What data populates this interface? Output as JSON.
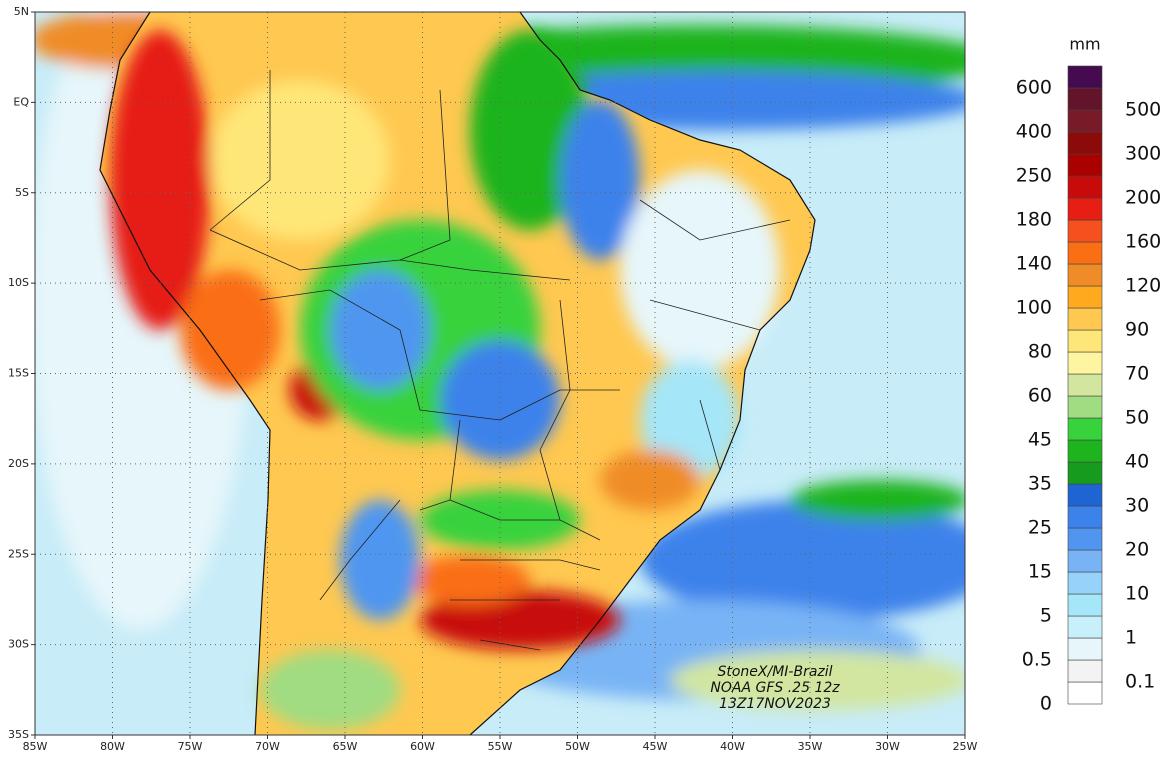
{
  "map": {
    "lon_lim": [
      -85,
      -25
    ],
    "lat_lim": [
      5,
      -35
    ],
    "lon_ticks": [
      {
        "value": -85,
        "label": "85W"
      },
      {
        "value": -80,
        "label": "80W"
      },
      {
        "value": -75,
        "label": "75W"
      },
      {
        "value": -70,
        "label": "70W"
      },
      {
        "value": -65,
        "label": "65W"
      },
      {
        "value": -60,
        "label": "60W"
      },
      {
        "value": -55,
        "label": "55W"
      },
      {
        "value": -50,
        "label": "50W"
      },
      {
        "value": -45,
        "label": "45W"
      },
      {
        "value": -40,
        "label": "40W"
      },
      {
        "value": -35,
        "label": "35W"
      },
      {
        "value": -30,
        "label": "30W"
      },
      {
        "value": -25,
        "label": "25W"
      }
    ],
    "lat_ticks": [
      {
        "value": 5,
        "label": "5N"
      },
      {
        "value": 0,
        "label": "EQ"
      },
      {
        "value": -5,
        "label": "5S"
      },
      {
        "value": -10,
        "label": "10S"
      },
      {
        "value": -15,
        "label": "15S"
      },
      {
        "value": -20,
        "label": "20S"
      },
      {
        "value": -25,
        "label": "25S"
      },
      {
        "value": -30,
        "label": "30S"
      },
      {
        "value": -35,
        "label": "35S"
      }
    ],
    "credits": [
      "StoneX/MI-Brazil",
      "NOAA GFS .25 12z",
      "13Z17NOV2023"
    ]
  },
  "legend": {
    "unit": "mm",
    "levels": [
      0,
      0.1,
      0.5,
      1,
      5,
      10,
      15,
      20,
      25,
      30,
      35,
      40,
      45,
      50,
      60,
      70,
      80,
      90,
      100,
      120,
      140,
      160,
      180,
      200,
      250,
      300,
      400,
      500,
      600
    ],
    "colors": [
      "#ffffff",
      "#f3f3f3",
      "#e6f6fa",
      "#c8f0fa",
      "#a5e6f8",
      "#96d2fa",
      "#78b4f5",
      "#5096f0",
      "#3c82eb",
      "#1e64d2",
      "#169b1e",
      "#1eb41e",
      "#37d23c",
      "#a0dc82",
      "#d2e6a0",
      "#fff5a0",
      "#ffe678",
      "#ffc850",
      "#ffaa1e",
      "#f08c28",
      "#fa6e14",
      "#f5501e",
      "#e61e14",
      "#c80a0a",
      "#aa0000",
      "#8c0a0a",
      "#781a28",
      "#64142a",
      "#460a50"
    ]
  }
}
